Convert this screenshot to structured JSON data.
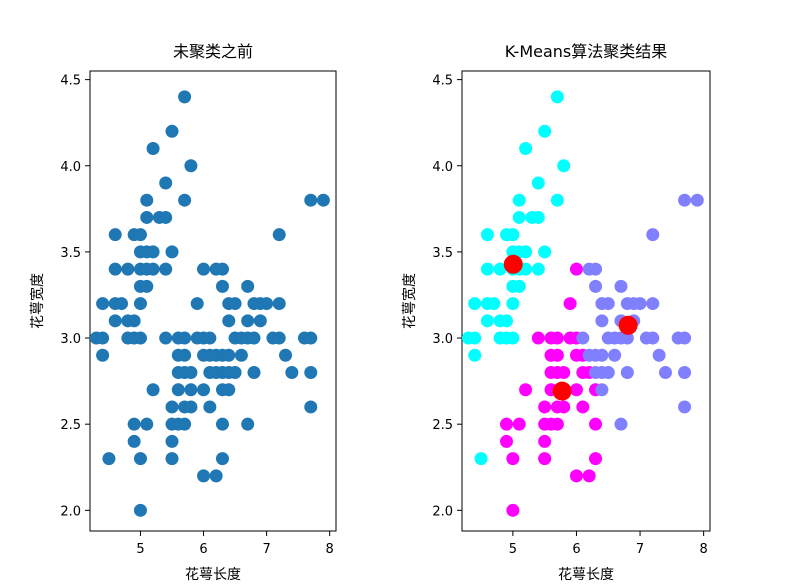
{
  "chart_data": [
    {
      "type": "scatter",
      "title": "未聚类之前",
      "xlabel": "花萼长度",
      "ylabel": "花萼宽度",
      "xlim": [
        4.2,
        8.1
      ],
      "ylim": [
        1.88,
        4.55
      ],
      "xticks": [
        5,
        6,
        7,
        8
      ],
      "xtick_labels": [
        "5",
        "6",
        "7",
        "8"
      ],
      "yticks": [
        2.0,
        2.5,
        3.0,
        3.5,
        4.0,
        4.5
      ],
      "ytick_labels": [
        "2.0",
        "2.5",
        "3.0",
        "3.5",
        "4.0",
        "4.5"
      ],
      "grid": false,
      "series": [
        {
          "color": "#1f77b4",
          "points": [
            [
              4.3,
              3.0
            ],
            [
              4.4,
              2.9
            ],
            [
              4.4,
              3.0
            ],
            [
              4.4,
              3.2
            ],
            [
              4.5,
              2.3
            ],
            [
              4.6,
              3.1
            ],
            [
              4.6,
              3.2
            ],
            [
              4.6,
              3.4
            ],
            [
              4.6,
              3.6
            ],
            [
              4.7,
              3.2
            ],
            [
              4.8,
              3.0
            ],
            [
              4.8,
              3.1
            ],
            [
              4.8,
              3.4
            ],
            [
              4.9,
              2.4
            ],
            [
              4.9,
              2.5
            ],
            [
              4.9,
              3.0
            ],
            [
              4.9,
              3.1
            ],
            [
              4.9,
              3.6
            ],
            [
              5.0,
              2.0
            ],
            [
              5.0,
              2.3
            ],
            [
              5.0,
              3.0
            ],
            [
              5.0,
              3.2
            ],
            [
              5.0,
              3.3
            ],
            [
              5.0,
              3.4
            ],
            [
              5.0,
              3.5
            ],
            [
              5.0,
              3.6
            ],
            [
              5.1,
              2.5
            ],
            [
              5.1,
              3.3
            ],
            [
              5.1,
              3.4
            ],
            [
              5.1,
              3.5
            ],
            [
              5.1,
              3.7
            ],
            [
              5.1,
              3.8
            ],
            [
              5.2,
              2.7
            ],
            [
              5.2,
              3.4
            ],
            [
              5.2,
              3.5
            ],
            [
              5.2,
              4.1
            ],
            [
              5.3,
              3.7
            ],
            [
              5.4,
              3.0
            ],
            [
              5.4,
              3.4
            ],
            [
              5.4,
              3.7
            ],
            [
              5.4,
              3.9
            ],
            [
              5.5,
              2.3
            ],
            [
              5.5,
              2.4
            ],
            [
              5.5,
              2.5
            ],
            [
              5.5,
              2.6
            ],
            [
              5.5,
              3.5
            ],
            [
              5.5,
              4.2
            ],
            [
              5.6,
              2.5
            ],
            [
              5.6,
              2.7
            ],
            [
              5.6,
              2.8
            ],
            [
              5.6,
              2.9
            ],
            [
              5.6,
              3.0
            ],
            [
              5.7,
              2.5
            ],
            [
              5.7,
              2.6
            ],
            [
              5.7,
              2.8
            ],
            [
              5.7,
              2.9
            ],
            [
              5.7,
              3.0
            ],
            [
              5.7,
              3.8
            ],
            [
              5.7,
              4.4
            ],
            [
              5.8,
              2.6
            ],
            [
              5.8,
              2.7
            ],
            [
              5.8,
              2.8
            ],
            [
              5.8,
              4.0
            ],
            [
              5.9,
              3.0
            ],
            [
              5.9,
              3.2
            ],
            [
              6.0,
              2.2
            ],
            [
              6.0,
              2.7
            ],
            [
              6.0,
              2.9
            ],
            [
              6.0,
              3.0
            ],
            [
              6.0,
              3.4
            ],
            [
              6.1,
              2.6
            ],
            [
              6.1,
              2.8
            ],
            [
              6.1,
              2.9
            ],
            [
              6.1,
              3.0
            ],
            [
              6.2,
              2.2
            ],
            [
              6.2,
              2.8
            ],
            [
              6.2,
              2.9
            ],
            [
              6.2,
              3.4
            ],
            [
              6.3,
              2.3
            ],
            [
              6.3,
              2.5
            ],
            [
              6.3,
              2.7
            ],
            [
              6.3,
              2.8
            ],
            [
              6.3,
              2.9
            ],
            [
              6.3,
              3.3
            ],
            [
              6.3,
              3.4
            ],
            [
              6.4,
              2.7
            ],
            [
              6.4,
              2.8
            ],
            [
              6.4,
              2.9
            ],
            [
              6.4,
              3.1
            ],
            [
              6.4,
              3.2
            ],
            [
              6.5,
              2.8
            ],
            [
              6.5,
              3.0
            ],
            [
              6.5,
              3.2
            ],
            [
              6.6,
              2.9
            ],
            [
              6.6,
              3.0
            ],
            [
              6.7,
              2.5
            ],
            [
              6.7,
              3.0
            ],
            [
              6.7,
              3.1
            ],
            [
              6.7,
              3.3
            ],
            [
              6.8,
              2.8
            ],
            [
              6.8,
              3.0
            ],
            [
              6.8,
              3.2
            ],
            [
              6.9,
              3.1
            ],
            [
              6.9,
              3.2
            ],
            [
              7.0,
              3.2
            ],
            [
              7.1,
              3.0
            ],
            [
              7.2,
              3.0
            ],
            [
              7.2,
              3.2
            ],
            [
              7.2,
              3.6
            ],
            [
              7.3,
              2.9
            ],
            [
              7.4,
              2.8
            ],
            [
              7.6,
              3.0
            ],
            [
              7.7,
              2.6
            ],
            [
              7.7,
              2.8
            ],
            [
              7.7,
              3.0
            ],
            [
              7.7,
              3.8
            ],
            [
              7.9,
              3.8
            ]
          ]
        }
      ]
    },
    {
      "type": "scatter",
      "title": "K-Means算法聚类结果",
      "xlabel": "花萼长度",
      "ylabel": "花萼宽度",
      "xlim": [
        4.2,
        8.1
      ],
      "ylim": [
        1.88,
        4.55
      ],
      "xticks": [
        5,
        6,
        7,
        8
      ],
      "xtick_labels": [
        "5",
        "6",
        "7",
        "8"
      ],
      "yticks": [
        2.0,
        2.5,
        3.0,
        3.5,
        4.0,
        4.5
      ],
      "ytick_labels": [
        "2.0",
        "2.5",
        "3.0",
        "3.5",
        "4.0",
        "4.5"
      ],
      "grid": false,
      "series": [
        {
          "color": "#00ffff",
          "points": [
            [
              4.3,
              3.0
            ],
            [
              4.4,
              2.9
            ],
            [
              4.4,
              3.0
            ],
            [
              4.4,
              3.2
            ],
            [
              4.5,
              2.3
            ],
            [
              4.6,
              3.1
            ],
            [
              4.6,
              3.2
            ],
            [
              4.6,
              3.4
            ],
            [
              4.6,
              3.6
            ],
            [
              4.7,
              3.2
            ],
            [
              4.8,
              3.0
            ],
            [
              4.8,
              3.1
            ],
            [
              4.8,
              3.4
            ],
            [
              4.9,
              3.0
            ],
            [
              4.9,
              3.1
            ],
            [
              4.9,
              3.6
            ],
            [
              5.0,
              3.0
            ],
            [
              5.0,
              3.2
            ],
            [
              5.0,
              3.3
            ],
            [
              5.0,
              3.4
            ],
            [
              5.0,
              3.5
            ],
            [
              5.0,
              3.6
            ],
            [
              5.1,
              3.3
            ],
            [
              5.1,
              3.4
            ],
            [
              5.1,
              3.5
            ],
            [
              5.1,
              3.7
            ],
            [
              5.1,
              3.8
            ],
            [
              5.2,
              3.4
            ],
            [
              5.2,
              3.5
            ],
            [
              5.2,
              4.1
            ],
            [
              5.3,
              3.7
            ],
            [
              5.4,
              3.4
            ],
            [
              5.4,
              3.7
            ],
            [
              5.4,
              3.9
            ],
            [
              5.5,
              3.5
            ],
            [
              5.5,
              4.2
            ],
            [
              5.7,
              3.8
            ],
            [
              5.7,
              4.4
            ],
            [
              5.8,
              4.0
            ]
          ]
        },
        {
          "color": "#ff00ff",
          "points": [
            [
              4.9,
              2.4
            ],
            [
              4.9,
              2.5
            ],
            [
              5.0,
              2.0
            ],
            [
              5.0,
              2.3
            ],
            [
              5.1,
              2.5
            ],
            [
              5.2,
              2.7
            ],
            [
              5.4,
              3.0
            ],
            [
              5.5,
              2.3
            ],
            [
              5.5,
              2.4
            ],
            [
              5.5,
              2.5
            ],
            [
              5.5,
              2.6
            ],
            [
              5.6,
              2.5
            ],
            [
              5.6,
              2.7
            ],
            [
              5.6,
              2.8
            ],
            [
              5.6,
              2.9
            ],
            [
              5.6,
              3.0
            ],
            [
              5.7,
              2.5
            ],
            [
              5.7,
              2.6
            ],
            [
              5.7,
              2.8
            ],
            [
              5.7,
              2.9
            ],
            [
              5.7,
              3.0
            ],
            [
              5.8,
              2.6
            ],
            [
              5.8,
              2.7
            ],
            [
              5.8,
              2.8
            ],
            [
              5.9,
              3.0
            ],
            [
              5.9,
              3.2
            ],
            [
              6.0,
              2.2
            ],
            [
              6.0,
              2.7
            ],
            [
              6.0,
              2.9
            ],
            [
              6.0,
              3.0
            ],
            [
              6.0,
              3.4
            ],
            [
              6.1,
              2.6
            ],
            [
              6.1,
              2.8
            ],
            [
              6.1,
              2.9
            ],
            [
              6.2,
              2.2
            ],
            [
              6.2,
              2.8
            ],
            [
              6.3,
              2.3
            ],
            [
              6.3,
              2.5
            ],
            [
              6.3,
              2.7
            ]
          ]
        },
        {
          "color": "#8080ff",
          "points": [
            [
              6.1,
              3.0
            ],
            [
              6.2,
              2.9
            ],
            [
              6.2,
              3.4
            ],
            [
              6.3,
              2.8
            ],
            [
              6.3,
              2.9
            ],
            [
              6.3,
              3.3
            ],
            [
              6.3,
              3.4
            ],
            [
              6.4,
              2.7
            ],
            [
              6.4,
              2.8
            ],
            [
              6.4,
              2.9
            ],
            [
              6.4,
              3.1
            ],
            [
              6.4,
              3.2
            ],
            [
              6.5,
              2.8
            ],
            [
              6.5,
              3.0
            ],
            [
              6.5,
              3.2
            ],
            [
              6.6,
              2.9
            ],
            [
              6.6,
              3.0
            ],
            [
              6.7,
              2.5
            ],
            [
              6.7,
              3.0
            ],
            [
              6.7,
              3.1
            ],
            [
              6.7,
              3.3
            ],
            [
              6.8,
              2.8
            ],
            [
              6.8,
              3.0
            ],
            [
              6.8,
              3.2
            ],
            [
              6.9,
              3.1
            ],
            [
              6.9,
              3.2
            ],
            [
              7.0,
              3.2
            ],
            [
              7.1,
              3.0
            ],
            [
              7.2,
              3.0
            ],
            [
              7.2,
              3.2
            ],
            [
              7.2,
              3.6
            ],
            [
              7.3,
              2.9
            ],
            [
              7.4,
              2.8
            ],
            [
              7.6,
              3.0
            ],
            [
              7.7,
              2.6
            ],
            [
              7.7,
              2.8
            ],
            [
              7.7,
              3.0
            ],
            [
              7.7,
              3.8
            ],
            [
              7.9,
              3.8
            ]
          ]
        },
        {
          "color": "#ff0000",
          "marker": "centroid",
          "points": [
            [
              5.006,
              3.428
            ],
            [
              5.774,
              2.692
            ],
            [
              6.812,
              3.074
            ]
          ]
        }
      ]
    }
  ]
}
